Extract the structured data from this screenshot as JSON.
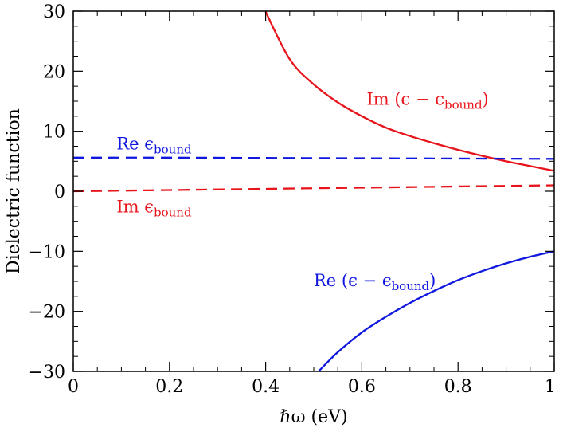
{
  "chart_data": {
    "type": "line",
    "title": "",
    "xlabel": "ℏω (eV)",
    "ylabel": "Dielectric function",
    "xlim": [
      0,
      1
    ],
    "ylim": [
      -30,
      30
    ],
    "x_ticks": [
      "0",
      "0.2",
      "0.4",
      "0.6",
      "0.8",
      "1"
    ],
    "y_ticks": [
      "−30",
      "−20",
      "−10",
      "0",
      "10",
      "20",
      "30"
    ],
    "grid": false,
    "legend": "none",
    "series": [
      {
        "name": "Im(ε − εbound)",
        "color": "#e8141b",
        "dash": "solid",
        "x": [
          0.4,
          0.45,
          0.5,
          0.55,
          0.6,
          0.65,
          0.7,
          0.75,
          0.8,
          0.85,
          0.9,
          0.95,
          1.0
        ],
        "y": [
          29.9,
          22.0,
          17.8,
          14.8,
          12.5,
          10.6,
          9.2,
          8.0,
          6.9,
          5.9,
          5.0,
          4.2,
          3.4
        ]
      },
      {
        "name": "Re(ε − εbound)",
        "color": "#1018e0",
        "dash": "solid",
        "x": [
          0.51,
          0.55,
          0.6,
          0.65,
          0.7,
          0.75,
          0.8,
          0.85,
          0.9,
          0.95,
          1.0
        ],
        "y": [
          -30.0,
          -26.8,
          -23.5,
          -20.9,
          -18.6,
          -16.6,
          -14.8,
          -13.3,
          -12.0,
          -10.9,
          -10.0
        ]
      },
      {
        "name": "Re εbound",
        "color": "#1018e0",
        "dash": "dashed",
        "x": [
          0.0,
          0.2,
          0.4,
          0.6,
          0.8,
          1.0
        ],
        "y": [
          5.6,
          5.6,
          5.55,
          5.5,
          5.45,
          5.4
        ]
      },
      {
        "name": "Im εbound",
        "color": "#e8141b",
        "dash": "dashed",
        "x": [
          0.0,
          0.2,
          0.4,
          0.6,
          0.8,
          1.0
        ],
        "y": [
          0.0,
          0.2,
          0.4,
          0.6,
          0.8,
          1.0
        ]
      }
    ],
    "annotations": [
      {
        "main": "Im (ϵ − ϵ",
        "sub": "bound",
        "tail": ")",
        "color": "#e8141b",
        "at": [
          0.61,
          14.4
        ]
      },
      {
        "main": "Re ϵ",
        "sub": "bound",
        "tail": "",
        "color": "#1018e0",
        "at": [
          0.09,
          7.0
        ]
      },
      {
        "main": "Im ϵ",
        "sub": "bound",
        "tail": "",
        "color": "#e8141b",
        "at": [
          0.09,
          -3.5
        ]
      },
      {
        "main": "Re (ϵ − ϵ",
        "sub": "bound",
        "tail": ")",
        "color": "#1018e0",
        "at": [
          0.5,
          -15.8
        ]
      }
    ]
  }
}
